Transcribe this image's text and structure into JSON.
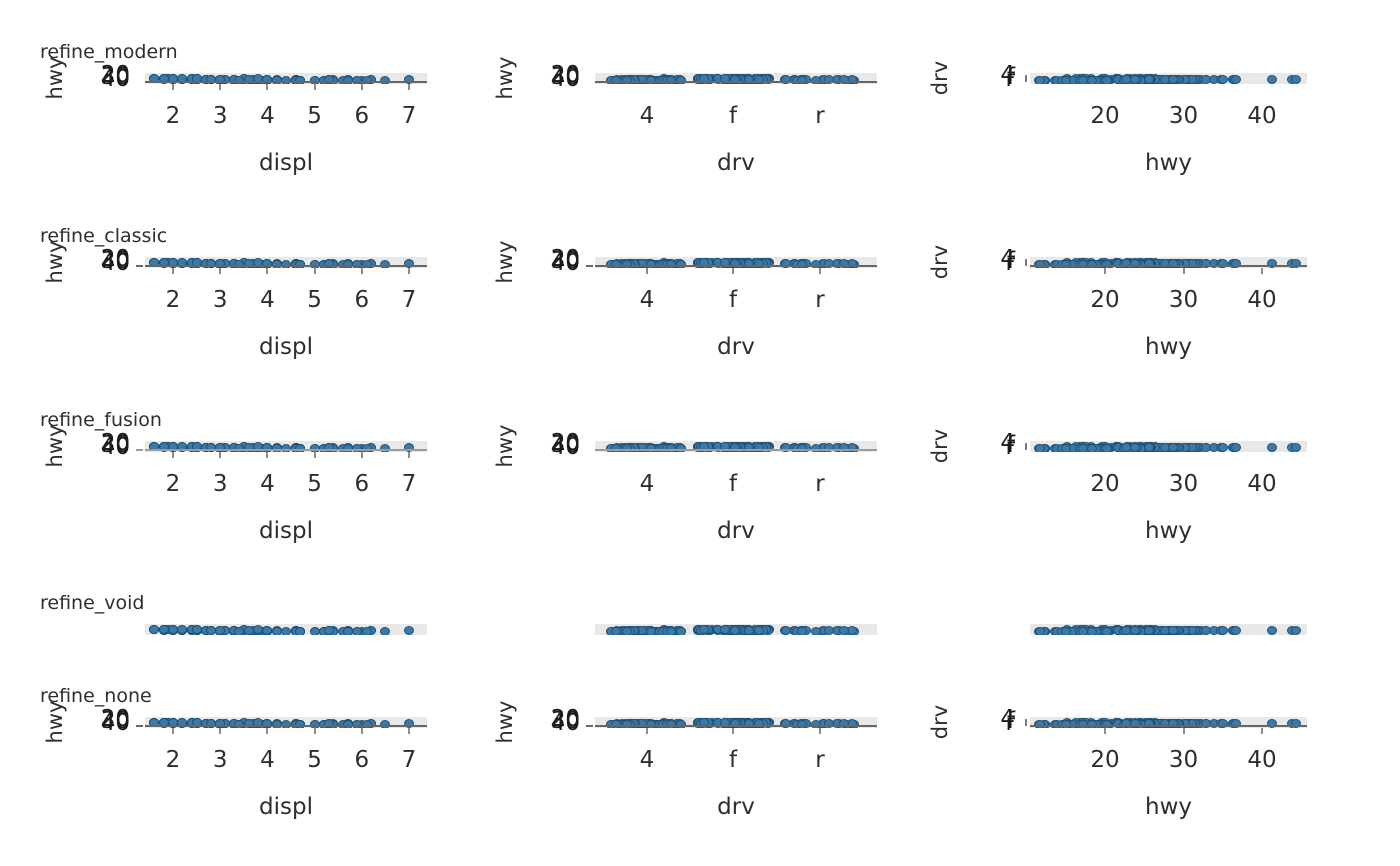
{
  "chart_data": {
    "type": "scatter",
    "description_title": "faceted strip/scatter panels comparing plot theme refinements",
    "rows": [
      {
        "title": "refine_modern",
        "axes": true
      },
      {
        "title": "refine_classic",
        "axes": true
      },
      {
        "title": "refine_fusion",
        "axes": true
      },
      {
        "title": "refine_void",
        "axes": false
      },
      {
        "title": "refine_none",
        "axes": true
      }
    ],
    "columns": [
      {
        "xlabel": "displ",
        "ylabel": "hwy",
        "xticks": [
          "2",
          "3",
          "4",
          "5",
          "6",
          "7"
        ],
        "yticks": [
          "20",
          "30",
          "40"
        ],
        "xrange": [
          1.6,
          7.0
        ]
      },
      {
        "xlabel": "drv",
        "ylabel": "hwy",
        "xticks": [
          "4",
          "f",
          "r"
        ],
        "yticks": [
          "20",
          "30",
          "40"
        ]
      },
      {
        "xlabel": "hwy",
        "ylabel": "drv",
        "xticks": [
          "20",
          "30",
          "40"
        ],
        "yticks": [
          "4",
          "f",
          "r"
        ],
        "xrange": [
          12,
          44
        ]
      }
    ],
    "colors": {
      "dot_fill": "#3c79a8",
      "dot_edge": "#1f5379",
      "panel_band": "#e8e8e8",
      "spine_dark": "#666666",
      "spine_light": "#9c9c9c",
      "tick": "#8c8c8c",
      "text": "#2e2e2e"
    },
    "points": {
      "displ": [
        1.8,
        1.8,
        2.0,
        2.0,
        2.8,
        2.8,
        3.1,
        1.8,
        1.8,
        2.0,
        2.0,
        2.8,
        2.8,
        3.1,
        3.1,
        2.8,
        3.1,
        4.2,
        5.3,
        5.3,
        5.3,
        5.7,
        6.0,
        5.7,
        5.7,
        6.2,
        6.2,
        7.0,
        5.3,
        5.3,
        5.7,
        6.5,
        2.4,
        2.4,
        3.1,
        3.5,
        3.6,
        2.4,
        3.0,
        3.3,
        3.3,
        3.3,
        3.3,
        3.8,
        3.8,
        3.8,
        4.0,
        3.7,
        3.7,
        3.9,
        3.9,
        4.7,
        4.7,
        4.7,
        5.2,
        5.2,
        3.9,
        4.7,
        4.7,
        4.7,
        5.2,
        5.7,
        5.9,
        4.7,
        4.7,
        4.7,
        4.7,
        4.7,
        4.7,
        5.2,
        5.2,
        5.7,
        5.9,
        4.6,
        5.4,
        5.4,
        4.0,
        4.0,
        4.0,
        4.0,
        4.6,
        5.0,
        4.2,
        4.2,
        4.6,
        4.6,
        4.6,
        5.4,
        3.8,
        3.8,
        4.0,
        4.0,
        4.6,
        4.6,
        4.6,
        4.6,
        5.4,
        1.6,
        1.6,
        1.6,
        1.6,
        1.6,
        1.8,
        1.8,
        1.8,
        2.0,
        2.4,
        2.4,
        2.4,
        2.4,
        2.5,
        2.5,
        3.3,
        2.0,
        2.0,
        2.0,
        2.0,
        2.7,
        2.7,
        2.7,
        3.0,
        3.7,
        4.0,
        4.7,
        4.7,
        4.7,
        5.7,
        6.1,
        4.0,
        4.2,
        4.4,
        4.6,
        5.4,
        5.4,
        5.4,
        4.0,
        4.0,
        4.6,
        5.0,
        2.4,
        2.4,
        2.5,
        2.5,
        3.5,
        3.5,
        3.0,
        3.0,
        3.5,
        3.3,
        3.3,
        4.0,
        5.6,
        3.1,
        3.8,
        3.8,
        3.8,
        5.3,
        2.5,
        2.5,
        2.5,
        2.5,
        2.5,
        2.5,
        2.2,
        2.2,
        2.5,
        2.5,
        2.5,
        2.5,
        2.5,
        2.5,
        2.7,
        2.7,
        3.4,
        3.4,
        4.0,
        4.7,
        2.2,
        2.2,
        2.4,
        2.4,
        3.0,
        3.0,
        3.5,
        2.2,
        2.2,
        2.4,
        2.4,
        3.0,
        3.0,
        3.3,
        1.8,
        1.8,
        1.8,
        1.8,
        1.8,
        4.7,
        5.7,
        2.7,
        2.7,
        2.7,
        3.4,
        3.4,
        4.0,
        4.0,
        4.7,
        4.7,
        4.7,
        4.7,
        5.7,
        2.0,
        2.0,
        2.0,
        2.0,
        2.8,
        1.9,
        2.0,
        2.0,
        2.0,
        2.0,
        2.5,
        2.5,
        2.8,
        2.8,
        1.9,
        1.9,
        2.0,
        2.0,
        2.5,
        2.5,
        1.8,
        1.8,
        2.0,
        2.0,
        2.8,
        2.8,
        3.6
      ],
      "hwy": [
        29,
        29,
        31,
        30,
        26,
        26,
        27,
        26,
        25,
        28,
        27,
        25,
        25,
        25,
        25,
        24,
        25,
        23,
        20,
        15,
        20,
        17,
        17,
        26,
        23,
        26,
        25,
        24,
        19,
        14,
        15,
        17,
        27,
        30,
        26,
        29,
        26,
        24,
        24,
        22,
        22,
        24,
        24,
        17,
        22,
        21,
        23,
        19,
        18,
        17,
        17,
        19,
        19,
        12,
        17,
        15,
        17,
        17,
        12,
        17,
        16,
        18,
        15,
        16,
        12,
        17,
        17,
        16,
        12,
        15,
        16,
        17,
        15,
        17,
        17,
        18,
        17,
        19,
        17,
        19,
        19,
        17,
        17,
        17,
        16,
        18,
        18,
        17,
        26,
        25,
        26,
        24,
        21,
        22,
        23,
        22,
        20,
        33,
        32,
        32,
        29,
        32,
        34,
        36,
        36,
        29,
        26,
        27,
        30,
        31,
        26,
        26,
        26,
        28,
        29,
        27,
        24,
        24,
        24,
        22,
        19,
        20,
        17,
        12,
        19,
        18,
        14,
        15,
        18,
        18,
        15,
        18,
        17,
        16,
        18,
        17,
        19,
        19,
        19,
        31,
        29,
        27,
        32,
        27,
        26,
        26,
        25,
        25,
        17,
        17,
        20,
        18,
        26,
        26,
        27,
        28,
        25,
        25,
        24,
        27,
        25,
        26,
        23,
        26,
        26,
        26,
        26,
        25,
        27,
        25,
        27,
        20,
        20,
        19,
        17,
        20,
        17,
        29,
        27,
        31,
        31,
        26,
        26,
        28,
        27,
        29,
        31,
        31,
        26,
        26,
        27,
        30,
        33,
        35,
        37,
        35,
        15,
        18,
        20,
        20,
        22,
        17,
        19,
        18,
        20,
        15,
        16,
        15,
        17,
        17,
        29,
        26,
        29,
        29,
        24,
        44,
        29,
        26,
        29,
        29,
        29,
        29,
        23,
        24,
        44,
        41,
        29,
        26,
        28,
        29,
        29,
        29,
        28,
        29,
        26,
        26,
        26
      ],
      "drv": [
        "f",
        "f",
        "f",
        "f",
        "f",
        "f",
        "f",
        "4",
        "4",
        "4",
        "4",
        "4",
        "4",
        "4",
        "4",
        "4",
        "4",
        "4",
        "r",
        "r",
        "r",
        "r",
        "r",
        "r",
        "r",
        "r",
        "r",
        "r",
        "4",
        "4",
        "4",
        "4",
        "f",
        "f",
        "f",
        "f",
        "f",
        "f",
        "f",
        "f",
        "f",
        "f",
        "f",
        "f",
        "f",
        "f",
        "f",
        "4",
        "4",
        "4",
        "4",
        "4",
        "4",
        "4",
        "4",
        "4",
        "4",
        "4",
        "4",
        "4",
        "4",
        "4",
        "4",
        "4",
        "4",
        "4",
        "4",
        "4",
        "4",
        "4",
        "4",
        "4",
        "4",
        "r",
        "r",
        "r",
        "4",
        "4",
        "4",
        "4",
        "4",
        "4",
        "4",
        "4",
        "4",
        "4",
        "4",
        "4",
        "r",
        "r",
        "r",
        "r",
        "r",
        "r",
        "r",
        "r",
        "r",
        "f",
        "f",
        "f",
        "f",
        "f",
        "f",
        "f",
        "f",
        "f",
        "f",
        "f",
        "f",
        "f",
        "f",
        "f",
        "f",
        "f",
        "f",
        "f",
        "f",
        "f",
        "f",
        "f",
        "4",
        "4",
        "4",
        "4",
        "4",
        "4",
        "4",
        "4",
        "4",
        "4",
        "4",
        "4",
        "r",
        "r",
        "r",
        "4",
        "4",
        "4",
        "4",
        "f",
        "f",
        "f",
        "f",
        "f",
        "f",
        "f",
        "f",
        "f",
        "4",
        "4",
        "4",
        "4",
        "f",
        "f",
        "f",
        "f",
        "f",
        "4",
        "4",
        "4",
        "4",
        "4",
        "4",
        "4",
        "4",
        "4",
        "4",
        "4",
        "4",
        "4",
        "4",
        "4",
        "4",
        "4",
        "4",
        "4",
        "4",
        "f",
        "f",
        "f",
        "f",
        "f",
        "f",
        "f",
        "f",
        "f",
        "f",
        "f",
        "f",
        "f",
        "f",
        "f",
        "f",
        "f",
        "f",
        "f",
        "4",
        "4",
        "4",
        "4",
        "4",
        "4",
        "4",
        "4",
        "4",
        "4",
        "4",
        "4",
        "4",
        "4",
        "f",
        "f",
        "f",
        "f",
        "f",
        "f",
        "f",
        "f",
        "f",
        "f",
        "f",
        "f",
        "f",
        "f",
        "f",
        "f",
        "f",
        "f",
        "f",
        "f",
        "f",
        "f",
        "f",
        "f",
        "f",
        "f",
        "f"
      ]
    }
  }
}
